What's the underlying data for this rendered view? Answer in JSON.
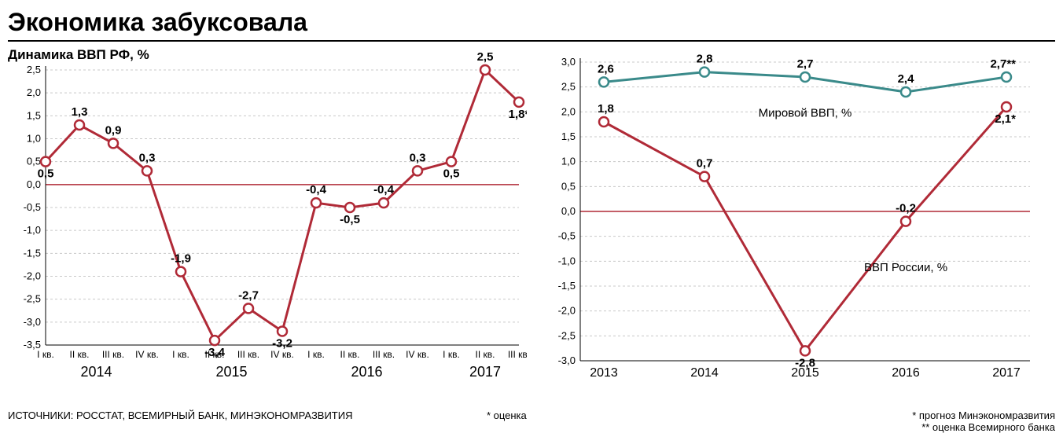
{
  "title": "Экономика забуксовала",
  "sources_label": "ИСТОЧНИКИ: РОССТАТ, ВСЕМИРНЫЙ БАНК, МИНЭКОНОМРАЗВИТИЯ",
  "footnote_est": "* оценка",
  "footnote_forecast": "* прогноз Минэкономразвития",
  "footnote_wb": "** оценка Всемирного банка",
  "chart_left": {
    "subtitle": "Динамика ВВП РФ, %",
    "type": "line",
    "yticks": [
      -3.5,
      -3.0,
      -2.5,
      -2.0,
      -1.5,
      -1.0,
      -0.5,
      0.0,
      0.5,
      1.0,
      1.5,
      2.0,
      2.5
    ],
    "ylim": [
      -3.5,
      2.5
    ],
    "xticks": [
      "I кв.",
      "II кв.",
      "III кв.",
      "IV кв.",
      "I кв.",
      "II кв.",
      "III кв.",
      "IV кв.",
      "I кв.",
      "II кв.",
      "III кв.",
      "IV кв.",
      "I кв.",
      "II кв.",
      "III кв."
    ],
    "year_groups": [
      {
        "label": "2014",
        "span": [
          0,
          3
        ]
      },
      {
        "label": "2015",
        "span": [
          4,
          7
        ]
      },
      {
        "label": "2016",
        "span": [
          8,
          11
        ]
      },
      {
        "label": "2017",
        "span": [
          12,
          14
        ]
      }
    ],
    "series": {
      "color": "#b02a37",
      "marker_fill": "#ffffff",
      "marker_stroke": "#b02a37",
      "marker_r": 6,
      "line_width": 3,
      "values": [
        0.5,
        1.3,
        0.9,
        0.3,
        -1.9,
        -3.4,
        -2.7,
        -3.2,
        -0.4,
        -0.5,
        -0.4,
        0.3,
        0.5,
        2.5,
        1.8
      ],
      "labels": [
        "0,5",
        "1,3",
        "0,9",
        "0,3",
        "-1,9",
        "-3,4",
        "-2,7",
        "-3,2",
        "-0,4",
        "-0,5",
        "-0,4",
        "0,3",
        "0,5",
        "2,5",
        "1,8*"
      ],
      "label_pos": [
        "b",
        "t",
        "t",
        "t",
        "t",
        "b",
        "t",
        "b",
        "t",
        "b",
        "t",
        "t",
        "b",
        "t",
        "b"
      ]
    },
    "grid_color": "#c8c8c8",
    "zero_color": "#b02a37",
    "axis_color": "#000000",
    "tick_fontsize": 13,
    "value_fontsize": 15,
    "year_fontsize": 18
  },
  "chart_right": {
    "type": "line",
    "yticks": [
      -3.0,
      -2.5,
      -2.0,
      -1.5,
      -1.0,
      -0.5,
      0.0,
      0.5,
      1.0,
      1.5,
      2.0,
      2.5,
      3.0
    ],
    "ylim": [
      -3.0,
      3.0
    ],
    "xticks": [
      "2013",
      "2014",
      "2015",
      "2016",
      "2017"
    ],
    "series_world": {
      "name": "Мировой ВВП, %",
      "color": "#3a8a8a",
      "marker_fill": "#ffffff",
      "marker_stroke": "#3a8a8a",
      "marker_r": 6,
      "line_width": 3,
      "values": [
        2.6,
        2.8,
        2.7,
        2.4,
        2.7
      ],
      "labels": [
        "2,6",
        "2,8",
        "2,7",
        "2,4",
        "2,7**"
      ],
      "label_pos": [
        "t",
        "t",
        "t",
        "t",
        "t"
      ],
      "name_xy": [
        2,
        1.9
      ]
    },
    "series_russia": {
      "name": "ВВП России, %",
      "color": "#b02a37",
      "marker_fill": "#ffffff",
      "marker_stroke": "#b02a37",
      "marker_r": 6,
      "line_width": 3,
      "values": [
        1.8,
        0.7,
        -2.8,
        -0.2,
        2.1
      ],
      "labels": [
        "1,8",
        "0,7",
        "-2,8",
        "-0,2",
        "2,1*"
      ],
      "label_pos": [
        "t",
        "t",
        "b",
        "t",
        "b"
      ],
      "name_xy": [
        3,
        -1.2
      ]
    },
    "grid_color": "#c8c8c8",
    "zero_color": "#b02a37",
    "axis_color": "#000000",
    "tick_fontsize": 13,
    "value_fontsize": 15,
    "year_fontsize": 16
  }
}
